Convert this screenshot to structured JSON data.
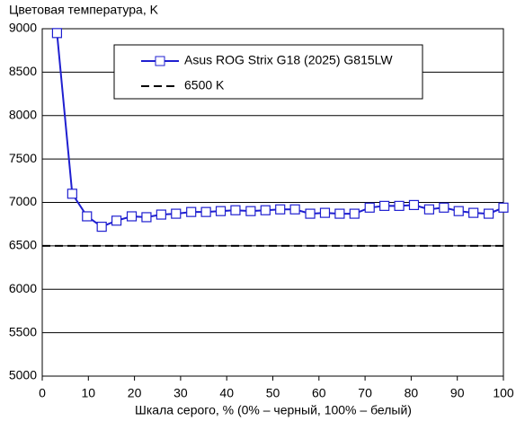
{
  "chart_data": {
    "type": "line",
    "title": "Цветовая температура, K",
    "xlabel": "Шкала серого, % (0% – черный, 100% – белый)",
    "x": [
      3.2,
      6.5,
      9.7,
      12.9,
      16.1,
      19.4,
      22.6,
      25.8,
      29.0,
      32.3,
      35.5,
      38.7,
      41.9,
      45.2,
      48.4,
      51.6,
      54.8,
      58.1,
      61.3,
      64.5,
      67.7,
      71.0,
      74.2,
      77.4,
      80.6,
      83.9,
      87.1,
      90.3,
      93.5,
      96.8,
      100
    ],
    "series": [
      {
        "name": "Asus ROG Strix G18 (2025) G815LW",
        "color": "#1f1fd0",
        "values": [
          8950,
          7100,
          6840,
          6720,
          6790,
          6840,
          6830,
          6860,
          6870,
          6890,
          6890,
          6900,
          6910,
          6900,
          6910,
          6920,
          6920,
          6870,
          6880,
          6870,
          6870,
          6940,
          6960,
          6960,
          6970,
          6920,
          6940,
          6900,
          6880,
          6870,
          6940
        ]
      }
    ],
    "reference": {
      "name": "6500 K",
      "color": "#000000",
      "value": 6500
    },
    "xlim": [
      0,
      100
    ],
    "xticks": [
      0,
      10,
      20,
      30,
      40,
      50,
      60,
      70,
      80,
      90,
      100
    ],
    "ylim": [
      5000,
      9000
    ],
    "yticks": [
      5000,
      5500,
      6000,
      6500,
      7000,
      7500,
      8000,
      8500,
      9000
    ],
    "grid": true
  }
}
